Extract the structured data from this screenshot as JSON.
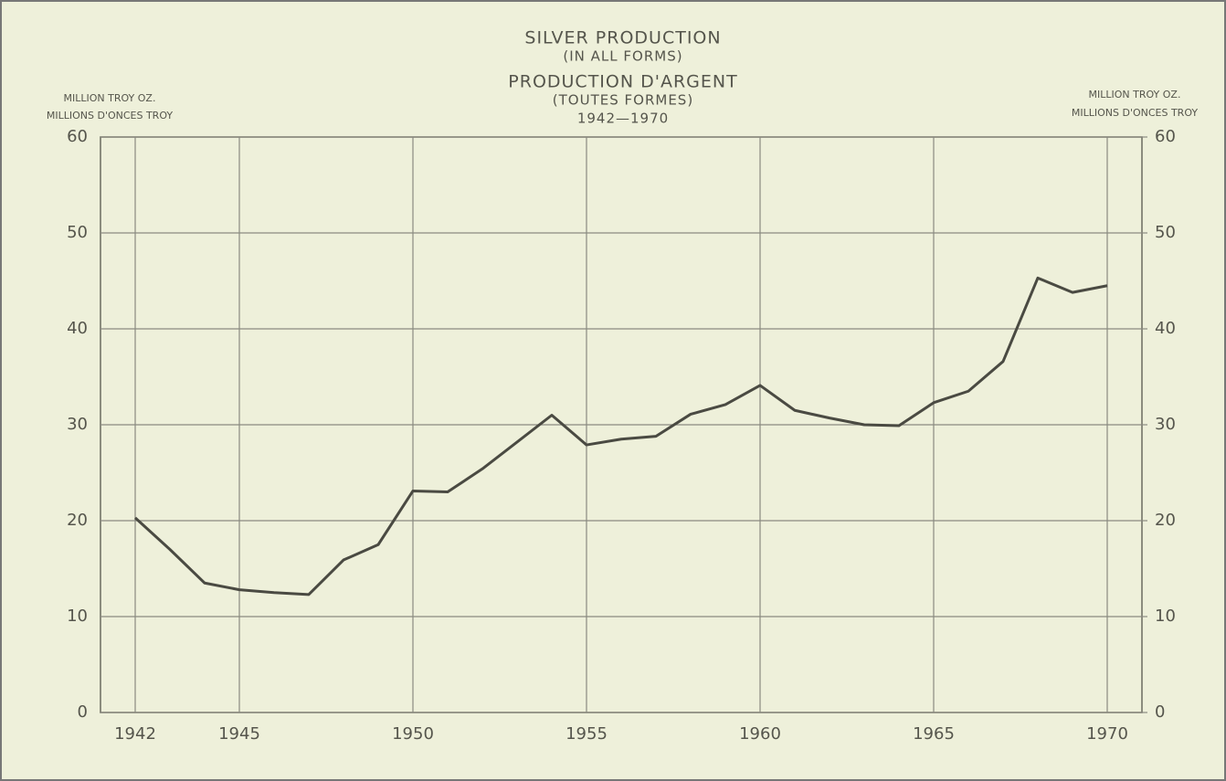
{
  "chart_data": {
    "type": "line",
    "title": [
      "SILVER PRODUCTION",
      "(IN ALL FORMS)",
      "PRODUCTION D'ARGENT",
      "(TOUTES FORMES)",
      "1942—1970"
    ],
    "ylabel": [
      "MILLION TROY OZ.",
      "MILLIONS D'ONCES TROY"
    ],
    "y2label": [
      "MILLION TROY OZ.",
      "MILLIONS D'ONCES TROY"
    ],
    "x": [
      1942,
      1943,
      1944,
      1945,
      1946,
      1947,
      1948,
      1949,
      1950,
      1951,
      1952,
      1953,
      1954,
      1955,
      1956,
      1957,
      1958,
      1959,
      1960,
      1961,
      1962,
      1963,
      1964,
      1965,
      1966,
      1967,
      1968,
      1969,
      1970
    ],
    "series": [
      {
        "name": "Silver production",
        "color": "#4a4a42",
        "values": [
          20.3,
          17.0,
          13.5,
          12.8,
          12.5,
          12.3,
          15.9,
          17.5,
          23.1,
          23.0,
          25.4,
          28.2,
          31.0,
          27.9,
          28.5,
          28.8,
          31.1,
          32.1,
          34.1,
          31.5,
          30.7,
          30.0,
          29.9,
          32.3,
          33.5,
          36.6,
          45.3,
          43.8,
          44.5
        ]
      }
    ],
    "xlim": [
      1941,
      1971
    ],
    "xticks": [
      1942,
      1945,
      1950,
      1955,
      1960,
      1965,
      1970
    ],
    "ylim": [
      0,
      60
    ],
    "yticks": [
      0,
      10,
      20,
      30,
      40,
      50,
      60
    ],
    "y2lim": [
      0,
      60
    ],
    "y2ticks": [
      0,
      10,
      20,
      30,
      40,
      50,
      60
    ],
    "grid": true
  }
}
